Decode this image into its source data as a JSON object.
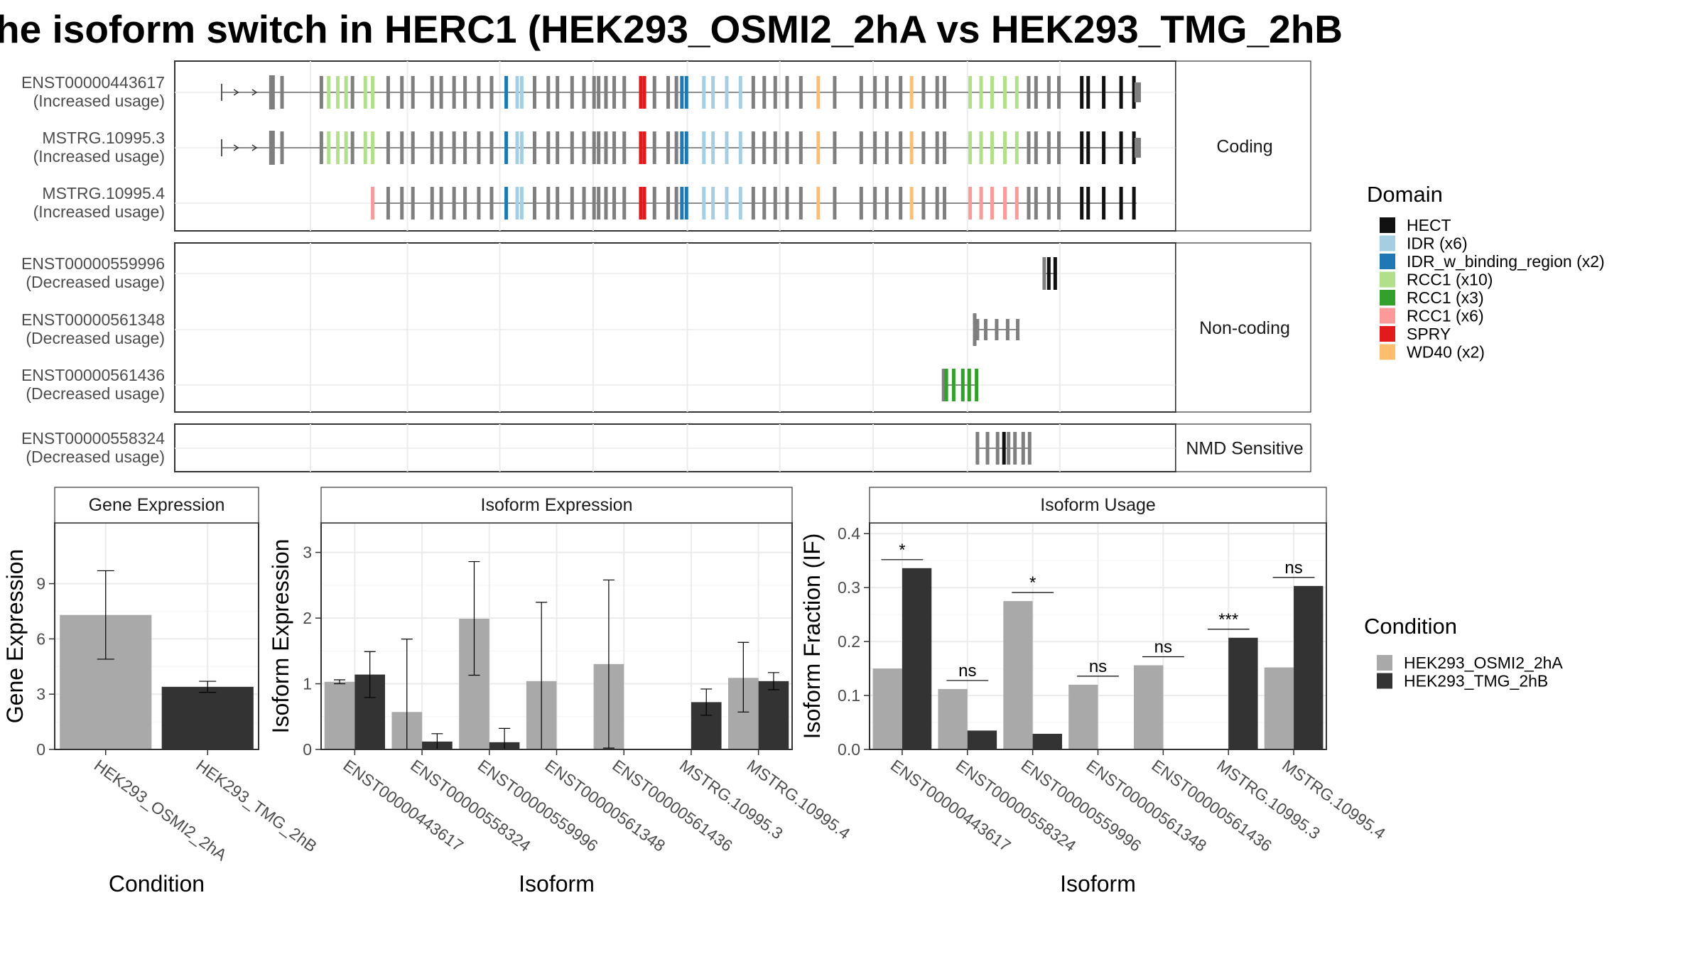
{
  "title": "he isoform switch in HERC1 (HEK293_OSMI2_2hA vs HEK293_TMG_2hB",
  "colors": {
    "HEK293_OSMI2_2hA": "#a9a9a9",
    "HEK293_TMG_2hB": "#333333",
    "intron": "#8c8c8c",
    "exon": "#7f7f7f"
  },
  "structure": {
    "genomic_range": [
      0,
      1000
    ],
    "groups": [
      {
        "label": "Coding",
        "transcripts": [
          "ENST00000443617",
          "MSTRG.10995.3",
          "MSTRG.10995.4"
        ]
      },
      {
        "label": "Non-coding",
        "transcripts": [
          "ENST00000559996",
          "ENST00000561348",
          "ENST00000561436"
        ]
      },
      {
        "label": "NMD Sensitive",
        "transcripts": [
          "ENST00000558324"
        ]
      }
    ],
    "transcripts": [
      {
        "id": "ENST00000443617",
        "status": "(Increased usage)",
        "start": 0,
        "end": 1000,
        "has_cds_start": true
      },
      {
        "id": "MSTRG.10995.3",
        "status": "(Increased usage)",
        "start": 0,
        "end": 1000,
        "has_cds_start": true
      },
      {
        "id": "MSTRG.10995.4",
        "status": "(Increased usage)",
        "start": 165,
        "end": 1000,
        "has_cds_start": false
      },
      {
        "id": "ENST00000559996",
        "status": "(Decreased usage)",
        "start": 899,
        "end": 912,
        "has_cds_start": false
      },
      {
        "id": "ENST00000561348",
        "status": "(Decreased usage)",
        "start": 823,
        "end": 871,
        "has_cds_start": false
      },
      {
        "id": "ENST00000561436",
        "status": "(Decreased usage)",
        "start": 789,
        "end": 826,
        "has_cds_start": false
      },
      {
        "id": "ENST00000558324",
        "status": "(Decreased usage)",
        "start": 824,
        "end": 884,
        "has_cds_start": false
      }
    ]
  },
  "domain_legend": {
    "title": "Domain",
    "items": [
      {
        "label": "HECT",
        "color": "#111111"
      },
      {
        "label": "IDR (x6)",
        "color": "#a6cee3"
      },
      {
        "label": "IDR_w_binding_region (x2)",
        "color": "#1f78b4"
      },
      {
        "label": "RCC1 (x10)",
        "color": "#b2df8a"
      },
      {
        "label": "RCC1 (x3)",
        "color": "#33a02c"
      },
      {
        "label": "RCC1 (x6)",
        "color": "#fb9a99"
      },
      {
        "label": "SPRY",
        "color": "#e31a1c"
      },
      {
        "label": "WD40 (x2)",
        "color": "#fdbf6f"
      }
    ]
  },
  "condition_legend": {
    "title": "Condition",
    "items": [
      "HEK293_OSMI2_2hA",
      "HEK293_TMG_2hB"
    ]
  },
  "chart_data": [
    {
      "type": "bar",
      "title": "Gene Expression",
      "xlabel": "Condition",
      "ylabel": "Gene Expression",
      "ylim": [
        0,
        12.3
      ],
      "yticks": [
        "0",
        "3",
        "6",
        "9"
      ],
      "yticks_values": [
        0,
        3,
        6,
        9
      ],
      "categories": [
        "HEK293_OSMI2_2hA",
        "HEK293_TMG_2hB"
      ],
      "values": [
        7.3,
        3.4
      ],
      "error_low": [
        4.9,
        3.1
      ],
      "error_high": [
        9.7,
        3.7
      ]
    },
    {
      "type": "bar",
      "title": "Isoform Expression",
      "xlabel": "Isoform",
      "ylabel": "Isoform Expression",
      "ylim": [
        0,
        3.45
      ],
      "yticks": [
        "0",
        "1",
        "2",
        "3"
      ],
      "yticks_values": [
        0,
        1,
        2,
        3
      ],
      "categories": [
        "ENST00000443617",
        "ENST00000558324",
        "ENST00000559996",
        "ENST00000561348",
        "ENST00000561436",
        "MSTRG.10995.3",
        "MSTRG.10995.4"
      ],
      "series": [
        {
          "name": "HEK293_OSMI2_2hA",
          "values": [
            1.03,
            0.57,
            1.99,
            1.04,
            1.3,
            0.0,
            1.09
          ],
          "error_low": [
            1.0,
            0.0,
            1.13,
            0.0,
            0.02,
            0.0,
            0.57
          ],
          "error_high": [
            1.06,
            1.68,
            2.86,
            2.24,
            2.58,
            0.0,
            1.63
          ]
        },
        {
          "name": "HEK293_TMG_2hB",
          "values": [
            1.14,
            0.12,
            0.11,
            0.0,
            0.0,
            0.72,
            1.04
          ],
          "error_low": [
            0.79,
            0.0,
            0.0,
            0.0,
            0.0,
            0.52,
            0.91
          ],
          "error_high": [
            1.49,
            0.24,
            0.32,
            0.0,
            0.0,
            0.92,
            1.17
          ]
        }
      ]
    },
    {
      "type": "bar",
      "title": "Isoform Usage",
      "xlabel": "Isoform",
      "ylabel": "Isoform Fraction (IF)",
      "ylim": [
        0,
        0.42
      ],
      "yticks": [
        "0.0",
        "0.1",
        "0.2",
        "0.3",
        "0.4"
      ],
      "yticks_values": [
        0,
        0.1,
        0.2,
        0.3,
        0.4
      ],
      "categories": [
        "ENST00000443617",
        "ENST00000558324",
        "ENST00000559996",
        "ENST00000561348",
        "ENST00000561436",
        "MSTRG.10995.3",
        "MSTRG.10995.4"
      ],
      "series": [
        {
          "name": "HEK293_OSMI2_2hA",
          "values": [
            0.15,
            0.112,
            0.275,
            0.12,
            0.156,
            0.0,
            0.152
          ]
        },
        {
          "name": "HEK293_TMG_2hB",
          "values": [
            0.336,
            0.035,
            0.029,
            0.0,
            0.0,
            0.207,
            0.303
          ]
        }
      ],
      "significance": [
        "*",
        "ns",
        "*",
        "ns",
        "ns",
        "***",
        "ns"
      ]
    }
  ]
}
